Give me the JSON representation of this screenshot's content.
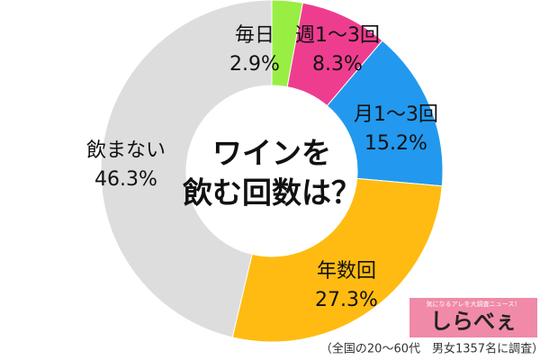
{
  "chart_data": {
    "type": "donut",
    "title": [
      "ワインを",
      "飲む回数は？"
    ],
    "categories": [
      "毎日",
      "週1〜3回",
      "月1〜3回",
      "年数回",
      "飲まない"
    ],
    "values": [
      2.9,
      8.3,
      15.2,
      27.3,
      46.3
    ],
    "value_labels": [
      "2.9%",
      "8.3%",
      "15.2%",
      "27.3%",
      "46.3%"
    ],
    "colors": [
      "#99ee44",
      "#ee3d8f",
      "#2299ee",
      "#ffbb11",
      "#dddddd"
    ],
    "note": "（全国の20〜60代　男女1357名に調査）",
    "logo": {
      "tagline": "気になるアレを大調査ニュース！",
      "text": "しらべぇ"
    }
  }
}
